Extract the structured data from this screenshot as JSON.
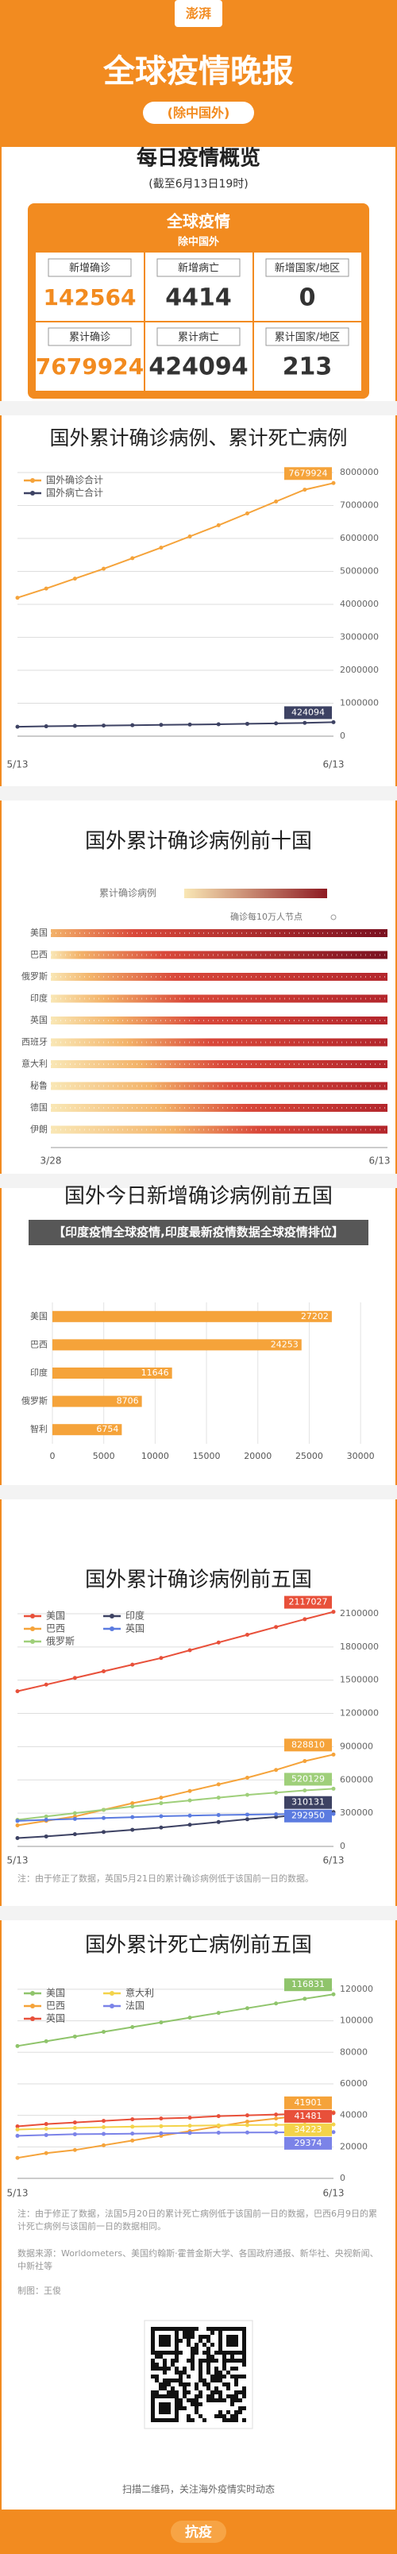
{
  "header": {
    "logo": "澎湃",
    "title": "全球疫情晚报",
    "subtitle": "(除中国外)"
  },
  "overview": {
    "title": "每日疫情概览",
    "date": "(截至6月13日19时)",
    "box_title": "全球疫情",
    "box_subtitle": "除中国外",
    "cells": [
      {
        "label": "新增确诊",
        "value": 142564
      },
      {
        "label": "新增病亡",
        "value": 4414
      },
      {
        "label": "新增国家/地区",
        "value": 0
      },
      {
        "label": "累计确诊",
        "value": 7679924
      },
      {
        "label": "累计病亡",
        "value": 424094
      },
      {
        "label": "累计国家/地区",
        "value": 213
      }
    ]
  },
  "chart_data": [
    {
      "type": "line",
      "title": "国外累计确诊病例、累计死亡病例",
      "categories": [
        "5/13",
        null,
        null,
        null,
        null,
        null,
        null,
        null,
        null,
        null,
        null,
        "6/13"
      ],
      "series": [
        {
          "name": "国外确诊合计",
          "color": "#f5a33a",
          "values": [
            4200000,
            4480000,
            4780000,
            5080000,
            5400000,
            5720000,
            6060000,
            6400000,
            6760000,
            7120000,
            7480000,
            7679924
          ]
        },
        {
          "name": "国外病亡合计",
          "color": "#3d4263",
          "values": [
            287000,
            300000,
            312000,
            323000,
            333000,
            343000,
            352000,
            362000,
            375000,
            388000,
            403000,
            424094
          ]
        }
      ],
      "ylim": [
        0,
        8000000
      ],
      "yticks": [
        0,
        1000000,
        2000000,
        3000000,
        4000000,
        5000000,
        6000000,
        7000000,
        8000000
      ],
      "grid": true
    },
    {
      "type": "heatmap",
      "title": "国外累计确诊病例前十国",
      "legend_title": "累计确诊病例",
      "legend_note": "确诊每10万人节点",
      "categories": [
        "美国",
        "巴西",
        "俄罗斯",
        "印度",
        "英国",
        "西班牙",
        "意大利",
        "秘鲁",
        "德国",
        "伊朗"
      ],
      "x_labels": [
        "3/28",
        "6/13"
      ]
    },
    {
      "type": "hbar",
      "title": "国外今日新增确诊病例前五国",
      "categories": [
        "美国",
        "巴西",
        "印度",
        "俄罗斯",
        "智利"
      ],
      "values": [
        27202,
        24253,
        11646,
        8706,
        6754
      ],
      "color": "#f5a33a",
      "xlim": [
        0,
        32000
      ],
      "xticks": [
        0,
        5000,
        10000,
        15000,
        20000,
        25000,
        30000
      ],
      "grid": true
    },
    {
      "type": "line",
      "title": "国外累计确诊病例前五国",
      "categories": [
        "5/13",
        null,
        null,
        null,
        null,
        null,
        null,
        null,
        null,
        null,
        null,
        "6/13"
      ],
      "series": [
        {
          "name": "美国",
          "color": "#e8503a",
          "values": [
            1400000,
            1460000,
            1520000,
            1580000,
            1640000,
            1700000,
            1770000,
            1840000,
            1910000,
            1980000,
            2050000,
            2117027
          ]
        },
        {
          "name": "巴西",
          "color": "#f5a33a",
          "values": [
            190000,
            230000,
            270000,
            330000,
            390000,
            440000,
            500000,
            560000,
            620000,
            690000,
            770000,
            828810
          ]
        },
        {
          "name": "俄罗斯",
          "color": "#9fcf7a",
          "values": [
            240000,
            270000,
            300000,
            330000,
            360000,
            390000,
            415000,
            440000,
            465000,
            485000,
            505000,
            520129
          ]
        },
        {
          "name": "印度",
          "color": "#3d4263",
          "values": [
            75000,
            90000,
            110000,
            130000,
            150000,
            170000,
            195000,
            220000,
            245000,
            265000,
            290000,
            310131
          ]
        },
        {
          "name": "英国",
          "color": "#5b7be0",
          "values": [
            230000,
            240000,
            248000,
            256000,
            264000,
            272000,
            278000,
            283000,
            287000,
            290000,
            292000,
            292950
          ]
        }
      ],
      "ylim": [
        0,
        2200000
      ],
      "yticks": [
        0,
        300000,
        600000,
        900000,
        1200000,
        1500000,
        1800000,
        2100000
      ],
      "grid": true,
      "note": "注：由于修正了数据，英国5月21日的累计确诊病例低于该国前一日的数据。"
    },
    {
      "type": "line",
      "title": "国外累计死亡病例前五国",
      "categories": [
        "5/13",
        null,
        null,
        null,
        null,
        null,
        null,
        null,
        null,
        null,
        null,
        "6/13"
      ],
      "series": [
        {
          "name": "美国",
          "color": "#8fc46b",
          "values": [
            84000,
            87000,
            90000,
            93000,
            96000,
            99000,
            102000,
            105000,
            108000,
            111000,
            114000,
            116831
          ]
        },
        {
          "name": "巴西",
          "color": "#f5a33a",
          "values": [
            13000,
            16000,
            18000,
            21000,
            24000,
            27000,
            30000,
            33000,
            36000,
            38000,
            40000,
            41901
          ]
        },
        {
          "name": "英国",
          "color": "#e8503a",
          "values": [
            33000,
            34500,
            35500,
            36500,
            37500,
            38000,
            38500,
            39500,
            40000,
            40500,
            41000,
            41481
          ]
        },
        {
          "name": "意大利",
          "color": "#f3d34a",
          "values": [
            31000,
            31500,
            32000,
            32500,
            32800,
            33100,
            33400,
            33600,
            33800,
            33950,
            34100,
            34223
          ]
        },
        {
          "name": "法国",
          "color": "#7b83e8",
          "values": [
            27000,
            27500,
            28000,
            28200,
            28400,
            28600,
            28800,
            29000,
            29100,
            29200,
            29300,
            29374
          ]
        }
      ],
      "ylim": [
        0,
        125000
      ],
      "yticks": [
        0,
        20000,
        40000,
        60000,
        80000,
        100000,
        120000
      ],
      "grid": true,
      "note": "注：由于修正了数据，法国5月20日的累计死亡病例低于该国前一日的数据，巴西6月9日的累计死亡病例与该国前一日的数据相同。"
    }
  ],
  "overlay": "【印度疫情全球疫情,印度最新疫情数据全球疫情排位】",
  "source": "数据来源：Worldometers、美国约翰斯·霍普金斯大学、各国政府通报、新华社、央视新闻、中新社等",
  "credit": "制图：王俊",
  "qr_caption": "扫描二维码，关注海外疫情实时动态",
  "footer": "抗疫"
}
